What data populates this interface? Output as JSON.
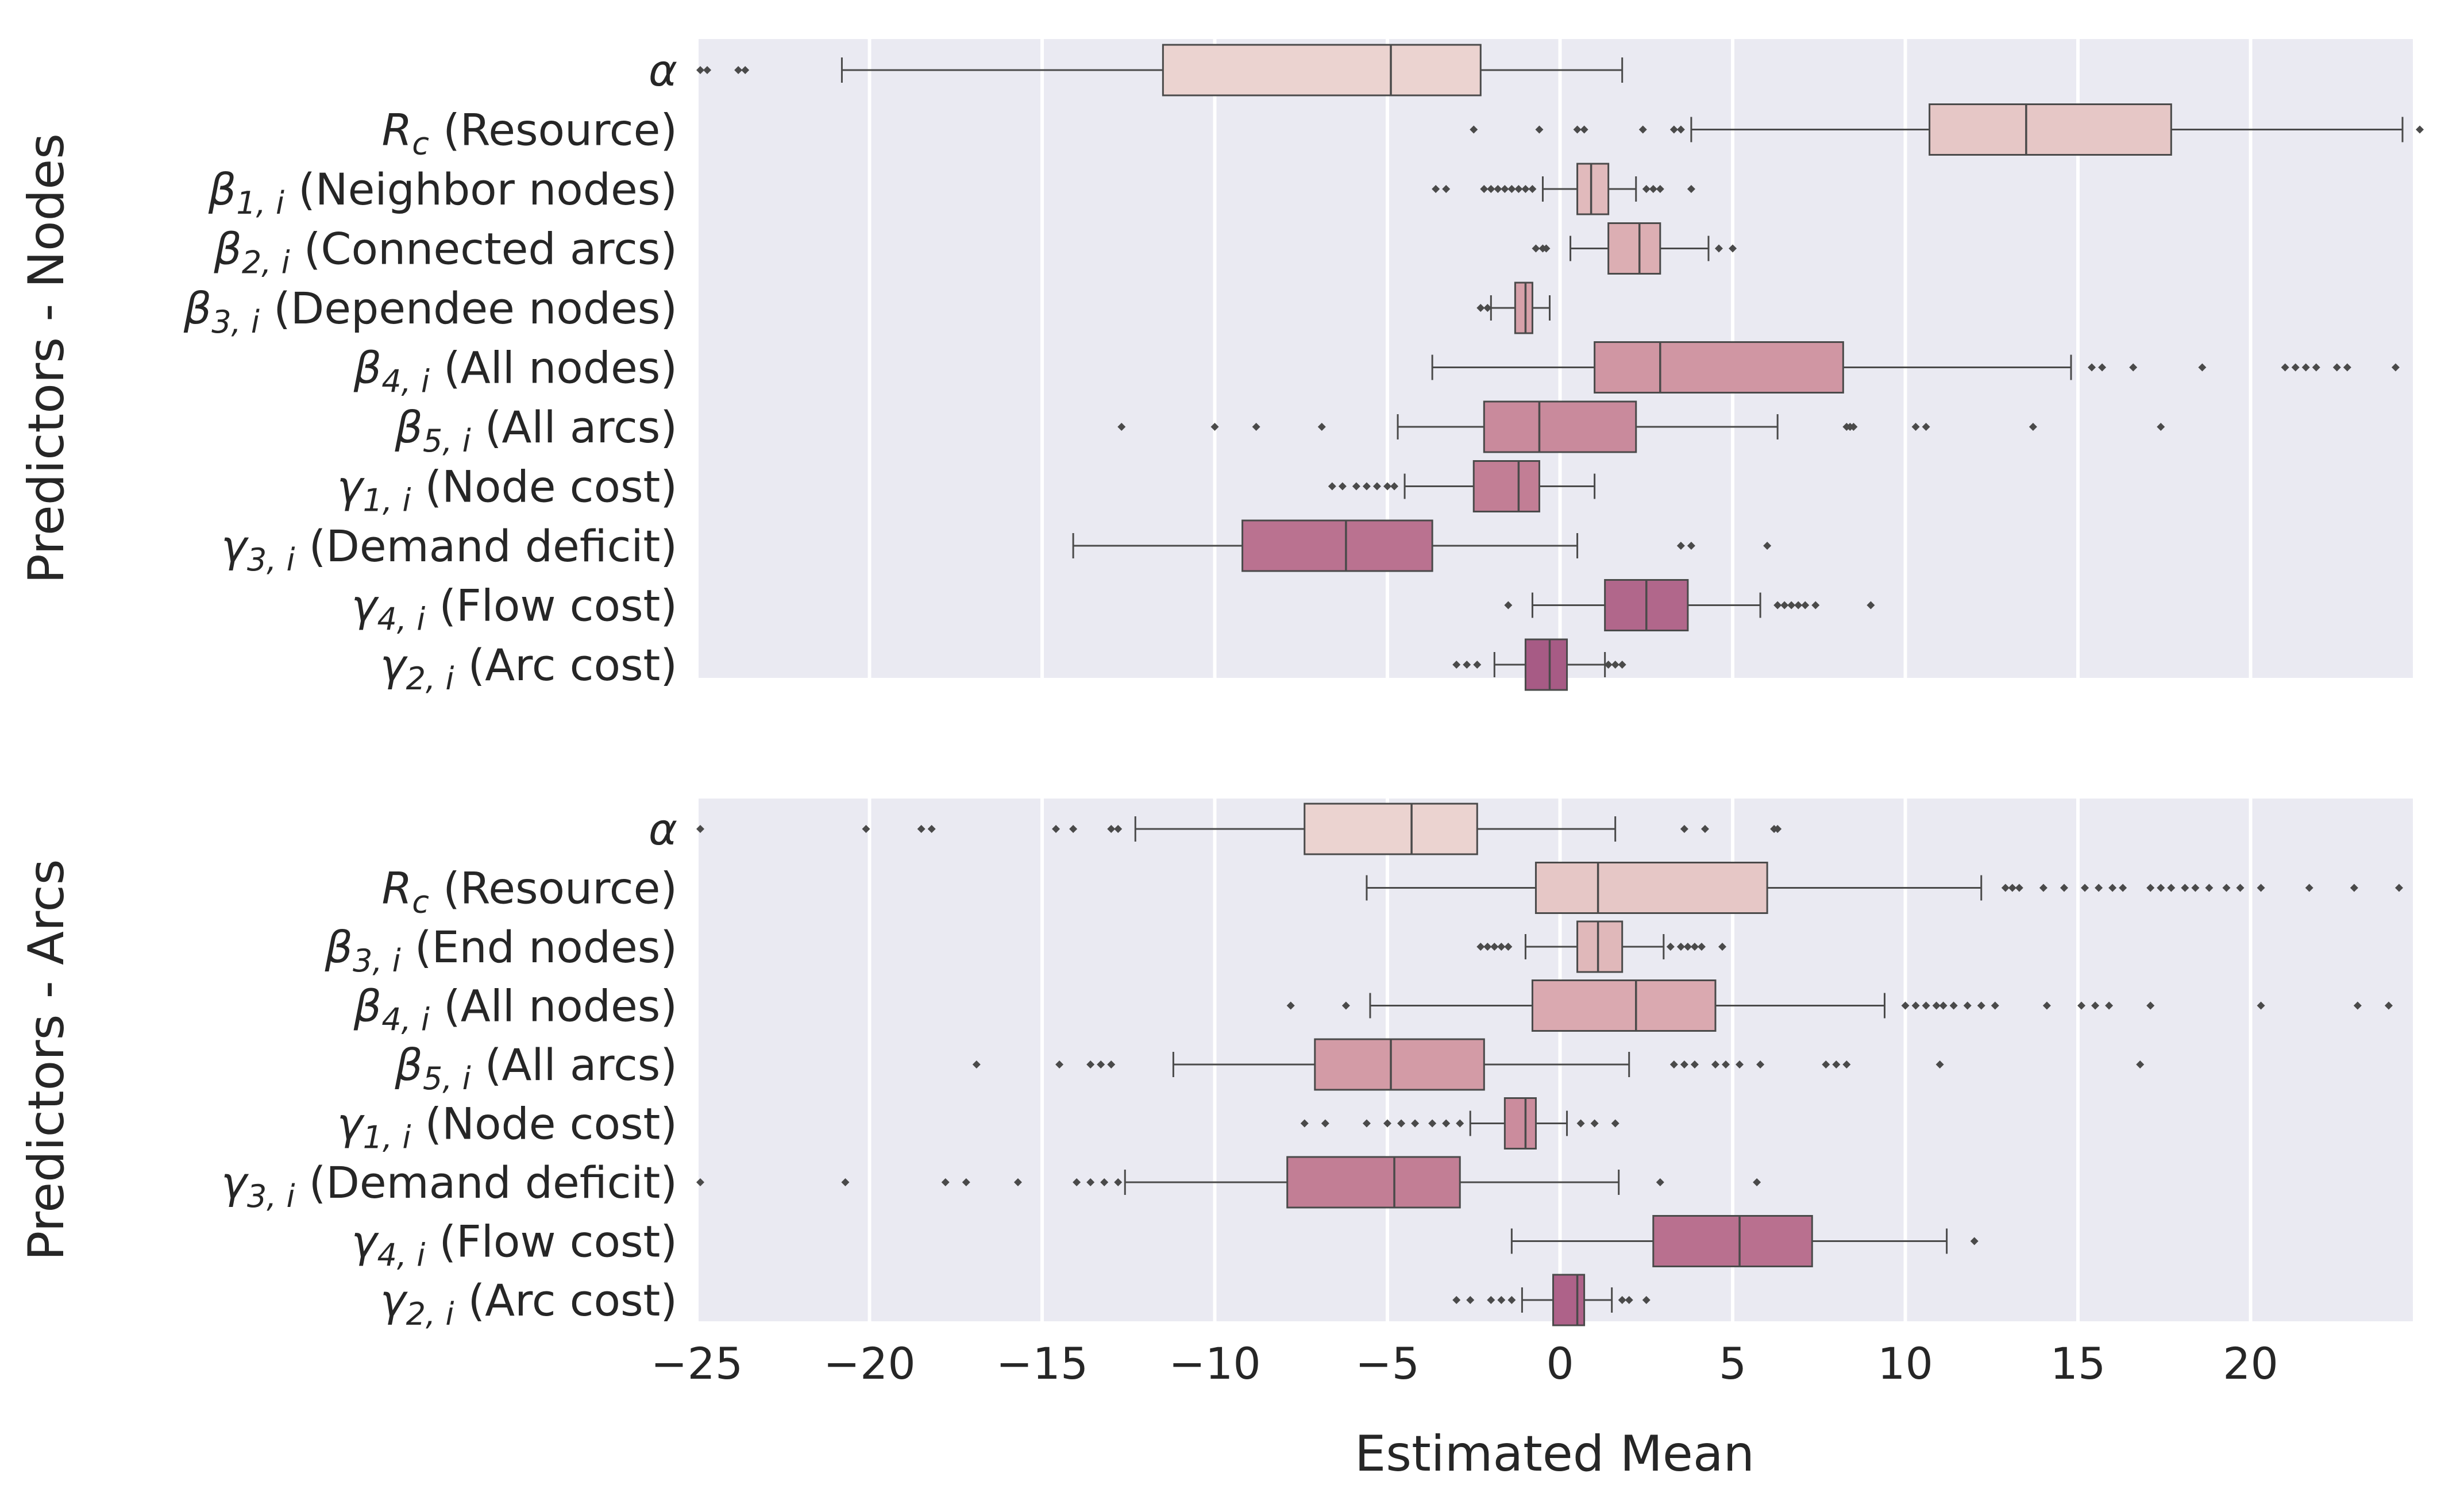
{
  "chart_data": [
    {
      "type": "box",
      "orientation": "horizontal",
      "ylabel": "Predictors - Nodes",
      "xlabel": "",
      "xlim": [
        -25,
        24.7
      ],
      "grid": true,
      "categories": [
        {
          "sym": "α",
          "sub": "",
          "text": ""
        },
        {
          "sym": "R",
          "sub": "c",
          "text": " (Resource)"
        },
        {
          "sym": "β",
          "sub": "1, i",
          "text": " (Neighbor nodes)"
        },
        {
          "sym": "β",
          "sub": "2, i",
          "text": " (Connected arcs)"
        },
        {
          "sym": "β",
          "sub": "3, i",
          "text": " (Dependee nodes)"
        },
        {
          "sym": "β",
          "sub": "4, i",
          "text": " (All nodes)"
        },
        {
          "sym": "β",
          "sub": "5, i",
          "text": " (All arcs)"
        },
        {
          "sym": "γ",
          "sub": "1, i",
          "text": " (Node cost)"
        },
        {
          "sym": "γ",
          "sub": "3, i",
          "text": " (Demand deficit)"
        },
        {
          "sym": "γ",
          "sub": "4, i",
          "text": " (Flow cost)"
        },
        {
          "sym": "γ",
          "sub": "2, i",
          "text": " (Arc cost)"
        }
      ],
      "boxes": [
        {
          "whislo": -20.8,
          "q1": -11.5,
          "med": -4.9,
          "q3": -2.3,
          "whishi": 1.8,
          "fliers": [
            -24.9,
            -24.7,
            -23.8,
            -23.6
          ]
        },
        {
          "whislo": 3.8,
          "q1": 10.7,
          "med": 13.5,
          "q3": 17.7,
          "whishi": 24.4,
          "fliers": [
            -2.5,
            -0.6,
            0.5,
            0.7,
            2.4,
            3.3,
            3.5,
            24.9
          ]
        },
        {
          "whislo": -0.5,
          "q1": 0.5,
          "med": 0.9,
          "q3": 1.4,
          "whishi": 2.2,
          "fliers": [
            -3.6,
            -3.3,
            -2.2,
            -2.0,
            -1.8,
            -1.6,
            -1.4,
            -1.2,
            -1.0,
            -0.8,
            2.5,
            2.7,
            2.9,
            3.8
          ]
        },
        {
          "whislo": 0.3,
          "q1": 1.4,
          "med": 2.3,
          "q3": 2.9,
          "whishi": 4.3,
          "fliers": [
            -0.7,
            -0.5,
            -0.4,
            4.6,
            5.0
          ]
        },
        {
          "whislo": -2.0,
          "q1": -1.3,
          "med": -1.0,
          "q3": -0.8,
          "whishi": -0.3,
          "fliers": [
            -2.3,
            -2.1
          ]
        },
        {
          "whislo": -3.7,
          "q1": 1.0,
          "med": 2.9,
          "q3": 8.2,
          "whishi": 14.8,
          "fliers": [
            15.4,
            15.7,
            16.6,
            18.6,
            21.0,
            21.3,
            21.6,
            21.9,
            22.5,
            22.8,
            24.2
          ]
        },
        {
          "whislo": -4.7,
          "q1": -2.2,
          "med": -0.6,
          "q3": 2.2,
          "whishi": 6.3,
          "fliers": [
            -12.7,
            -10.0,
            -8.8,
            -6.9,
            8.3,
            8.4,
            8.5,
            10.3,
            10.6,
            13.7,
            17.4
          ]
        },
        {
          "whislo": -4.5,
          "q1": -2.5,
          "med": -1.2,
          "q3": -0.6,
          "whishi": 1.0,
          "fliers": [
            -6.6,
            -6.3,
            -5.9,
            -5.6,
            -5.3,
            -5.0,
            -4.8
          ]
        },
        {
          "whislo": -14.1,
          "q1": -9.2,
          "med": -6.2,
          "q3": -3.7,
          "whishi": 0.5,
          "fliers": [
            3.5,
            3.8,
            6.0
          ]
        },
        {
          "whislo": -0.8,
          "q1": 1.3,
          "med": 2.5,
          "q3": 3.7,
          "whishi": 5.8,
          "fliers": [
            -1.5,
            6.3,
            6.5,
            6.7,
            6.9,
            7.1,
            7.4,
            9.0
          ]
        },
        {
          "whislo": -1.9,
          "q1": -1.0,
          "med": -0.3,
          "q3": 0.2,
          "whishi": 1.3,
          "fliers": [
            -3.0,
            -2.7,
            -2.4,
            1.4,
            1.6,
            1.8
          ]
        }
      ],
      "colors": [
        "#ebd3d0",
        "#e6c7c6",
        "#e1babc",
        "#dcaeb3",
        "#d6a1aa",
        "#d096a3",
        "#c98a9c",
        "#c27e95",
        "#ba7290",
        "#b1678b",
        "#a75b85"
      ]
    },
    {
      "type": "box",
      "orientation": "horizontal",
      "ylabel": "Predictors - Arcs",
      "xlabel": "Estimated Mean",
      "xlim": [
        -25,
        24.7
      ],
      "xticks": [
        -25,
        -20,
        -15,
        -10,
        -5,
        0,
        5,
        10,
        15,
        20
      ],
      "xtick_labels": [
        "−25",
        "−20",
        "−15",
        "−10",
        "−5",
        "0",
        "5",
        "10",
        "15",
        "20"
      ],
      "grid": true,
      "categories": [
        {
          "sym": "α",
          "sub": "",
          "text": ""
        },
        {
          "sym": "R",
          "sub": "c",
          "text": " (Resource)"
        },
        {
          "sym": "β",
          "sub": "3, i",
          "text": " (End nodes)"
        },
        {
          "sym": "β",
          "sub": "4, i",
          "text": " (All nodes)"
        },
        {
          "sym": "β",
          "sub": "5, i",
          "text": " (All arcs)"
        },
        {
          "sym": "γ",
          "sub": "1, i",
          "text": " (Node cost)"
        },
        {
          "sym": "γ",
          "sub": "3, i",
          "text": " (Demand deficit)"
        },
        {
          "sym": "γ",
          "sub": "4, i",
          "text": " (Flow cost)"
        },
        {
          "sym": "γ",
          "sub": "2, i",
          "text": " (Arc cost)"
        }
      ],
      "boxes": [
        {
          "whislo": -12.3,
          "q1": -7.4,
          "med": -4.3,
          "q3": -2.4,
          "whishi": 1.6,
          "fliers": [
            -24.9,
            -20.1,
            -18.5,
            -18.2,
            -14.6,
            -14.1,
            -13.0,
            -12.8,
            3.6,
            4.2,
            6.2,
            6.3
          ]
        },
        {
          "whislo": -5.6,
          "q1": -0.7,
          "med": 1.1,
          "q3": 6.0,
          "whishi": 12.2,
          "fliers": [
            12.9,
            13.1,
            13.3,
            14.0,
            14.6,
            15.2,
            15.6,
            16.0,
            16.3,
            17.1,
            17.4,
            17.7,
            18.1,
            18.4,
            18.8,
            19.3,
            19.7,
            20.3,
            21.7,
            23.0,
            24.3
          ]
        },
        {
          "whislo": -1.0,
          "q1": 0.5,
          "med": 1.1,
          "q3": 1.8,
          "whishi": 3.0,
          "fliers": [
            -2.3,
            -2.1,
            -1.9,
            -1.7,
            -1.5,
            3.2,
            3.5,
            3.7,
            3.9,
            4.1,
            4.7
          ]
        },
        {
          "whislo": -5.5,
          "q1": -0.8,
          "med": 2.2,
          "q3": 4.5,
          "whishi": 9.4,
          "fliers": [
            -7.8,
            -6.2,
            10.0,
            10.3,
            10.6,
            10.9,
            11.1,
            11.4,
            11.8,
            12.2,
            12.6,
            14.1,
            15.1,
            15.5,
            15.9,
            17.1,
            20.3,
            23.1,
            24.0
          ]
        },
        {
          "whislo": -11.2,
          "q1": -7.1,
          "med": -4.9,
          "q3": -2.2,
          "whishi": 2.0,
          "fliers": [
            -16.9,
            -14.5,
            -13.6,
            -13.3,
            -13.0,
            3.3,
            3.6,
            3.9,
            4.5,
            4.8,
            5.2,
            5.8,
            7.7,
            8.0,
            8.3,
            11.0,
            16.8
          ]
        },
        {
          "whislo": -2.6,
          "q1": -1.6,
          "med": -1.0,
          "q3": -0.7,
          "whishi": 0.2,
          "fliers": [
            -7.4,
            -6.8,
            -5.6,
            -5.0,
            -4.6,
            -4.2,
            -3.7,
            -3.3,
            -2.9,
            0.6,
            1.0,
            1.6
          ]
        },
        {
          "whislo": -12.6,
          "q1": -7.9,
          "med": -4.8,
          "q3": -2.9,
          "whishi": 1.7,
          "fliers": [
            -24.9,
            -20.7,
            -17.8,
            -17.2,
            -15.7,
            -14.0,
            -13.6,
            -13.2,
            -12.8,
            2.9,
            5.7
          ]
        },
        {
          "whislo": -1.4,
          "q1": 2.7,
          "med": 5.2,
          "q3": 7.3,
          "whishi": 11.2,
          "fliers": [
            12.0
          ]
        },
        {
          "whislo": -1.1,
          "q1": -0.2,
          "med": 0.5,
          "q3": 0.7,
          "whishi": 1.5,
          "fliers": [
            -3.0,
            -2.6,
            -2.0,
            -1.7,
            -1.4,
            1.8,
            2.0,
            2.5
          ]
        }
      ],
      "colors": [
        "#ebd3d0",
        "#e6c7c6",
        "#e0b8ba",
        "#daa9b0",
        "#d39ba6",
        "#cb8c9d",
        "#c27e95",
        "#b9708f",
        "#ae6289"
      ]
    }
  ]
}
